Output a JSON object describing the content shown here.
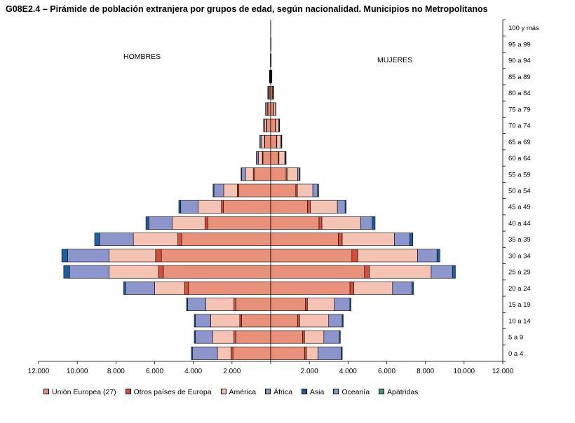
{
  "title": "G08E2.4 – Pirámide de población extranjera por grupos de edad, según nacionalidad. Municipios no Metropolitanos",
  "chart_data": {
    "type": "bar",
    "orientation": "horizontal-pyramid",
    "left_label": "HOMBRES",
    "right_label": "MUJERES",
    "categories": [
      "0 a 4",
      "5 a 9",
      "10 a 14",
      "15 a 19",
      "20 a 24",
      "25 a 29",
      "30 a 34",
      "35 a 39",
      "40 a 44",
      "45 a 49",
      "50 a 54",
      "55 a 59",
      "60 a 64",
      "65 a 69",
      "70 a 74",
      "75 a 79",
      "80 a 84",
      "85 a 89",
      "90 a 94",
      "95 a 99",
      "100 y más"
    ],
    "xlim": [
      -12000,
      12000
    ],
    "xticks": [
      -12000,
      -10000,
      -8000,
      -6000,
      -4000,
      -2000,
      0,
      2000,
      4000,
      6000,
      8000,
      10000,
      12000
    ],
    "xtick_labels": [
      "12.000",
      "10.000",
      "8.000",
      "6.000",
      "4.000",
      "2.000",
      "",
      "2.000",
      "4.000",
      "6.000",
      "8.000",
      "10.000",
      "12.000"
    ],
    "series": [
      {
        "name": "Unión Europea (27)",
        "color": "#e8907a",
        "men": [
          1950,
          1800,
          1500,
          1800,
          4250,
          5550,
          5650,
          4600,
          3250,
          2450,
          1650,
          850,
          400,
          300,
          200,
          150,
          80,
          40,
          10,
          5,
          0
        ],
        "women": [
          1750,
          1650,
          1400,
          1800,
          4100,
          4850,
          4200,
          3500,
          2500,
          1900,
          1300,
          800,
          400,
          300,
          250,
          150,
          80,
          40,
          10,
          5,
          0
        ]
      },
      {
        "name": "Otros países de Europa",
        "color": "#d2503c",
        "men": [
          100,
          100,
          100,
          100,
          200,
          250,
          300,
          200,
          150,
          100,
          80,
          50,
          30,
          20,
          20,
          10,
          10,
          5,
          0,
          0,
          0
        ],
        "women": [
          100,
          100,
          100,
          100,
          200,
          250,
          300,
          200,
          150,
          150,
          80,
          50,
          30,
          20,
          20,
          10,
          10,
          5,
          0,
          0,
          0
        ]
      },
      {
        "name": "América",
        "color": "#f5c3b4",
        "men": [
          700,
          1100,
          1500,
          1450,
          1550,
          2550,
          2400,
          2300,
          1700,
          1200,
          700,
          400,
          200,
          150,
          100,
          80,
          50,
          20,
          5,
          0,
          0
        ],
        "women": [
          600,
          1000,
          1500,
          1400,
          2000,
          3200,
          3100,
          2700,
          2000,
          1400,
          800,
          550,
          300,
          200,
          150,
          100,
          60,
          20,
          5,
          0,
          0
        ]
      },
      {
        "name": "África",
        "color": "#8c96cc",
        "men": [
          1300,
          900,
          800,
          950,
          1500,
          2050,
          2150,
          1750,
          1200,
          900,
          500,
          200,
          100,
          80,
          40,
          20,
          10,
          0,
          0,
          0,
          0
        ],
        "women": [
          1200,
          800,
          700,
          800,
          1000,
          1100,
          1000,
          800,
          600,
          400,
          250,
          100,
          50,
          40,
          20,
          10,
          5,
          0,
          0,
          0,
          0
        ]
      },
      {
        "name": "Asia",
        "color": "#1f5e9e",
        "men": [
          50,
          50,
          50,
          50,
          100,
          300,
          300,
          250,
          150,
          100,
          50,
          30,
          10,
          10,
          5,
          5,
          0,
          0,
          0,
          0,
          0
        ],
        "women": [
          50,
          50,
          50,
          50,
          80,
          150,
          150,
          150,
          150,
          50,
          50,
          20,
          10,
          5,
          5,
          0,
          0,
          0,
          0,
          0,
          0
        ],
        "outline": "#000000"
      },
      {
        "name": "Oceanía",
        "color": "#7f9cc8",
        "men": [
          0,
          0,
          0,
          0,
          0,
          0,
          0,
          0,
          0,
          0,
          0,
          0,
          0,
          0,
          0,
          0,
          0,
          0,
          0,
          0,
          0
        ],
        "women": [
          0,
          0,
          0,
          0,
          0,
          0,
          0,
          0,
          0,
          0,
          0,
          0,
          0,
          0,
          0,
          0,
          0,
          0,
          0,
          0,
          0
        ]
      },
      {
        "name": "Apátridas",
        "color": "#3e9a86",
        "men": [
          0,
          0,
          0,
          0,
          0,
          0,
          0,
          0,
          0,
          0,
          0,
          0,
          0,
          0,
          0,
          0,
          0,
          0,
          0,
          0,
          0
        ],
        "women": [
          0,
          0,
          0,
          0,
          0,
          0,
          0,
          0,
          0,
          0,
          0,
          0,
          0,
          0,
          0,
          0,
          0,
          0,
          0,
          0,
          0
        ]
      }
    ],
    "grid": false,
    "legend_position": "bottom"
  }
}
